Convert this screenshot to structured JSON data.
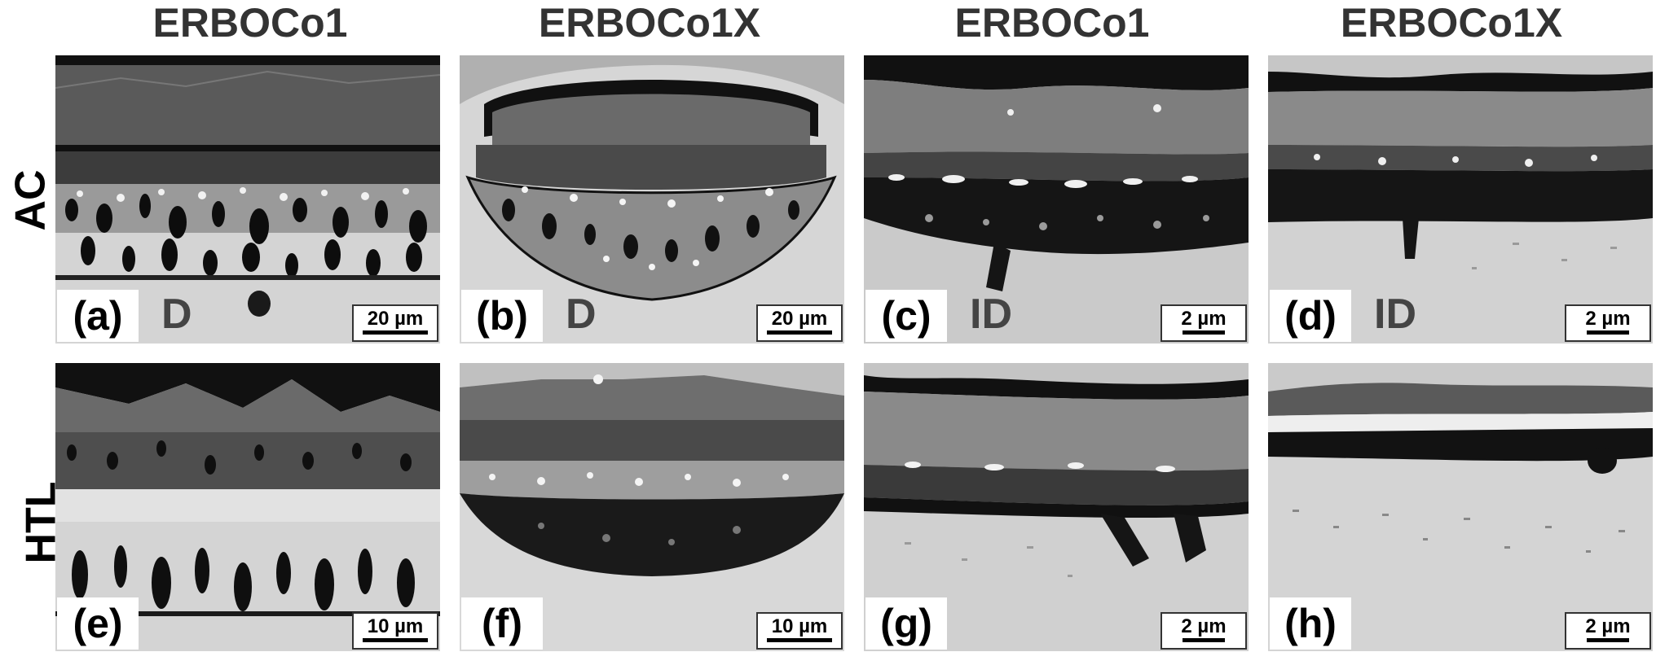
{
  "columns": [
    {
      "title": "ERBOCo1"
    },
    {
      "title": "ERBOCo1X"
    },
    {
      "title": "ERBOCo1"
    },
    {
      "title": "ERBOCo1X"
    }
  ],
  "rows": [
    {
      "label": "AC"
    },
    {
      "label": "HTL"
    }
  ],
  "panels": [
    {
      "letter": "(a)",
      "type": "D",
      "scale": "20 µm"
    },
    {
      "letter": "(b)",
      "type": "D",
      "scale": "20 µm"
    },
    {
      "letter": "(c)",
      "type": "ID",
      "scale": "2 µm"
    },
    {
      "letter": "(d)",
      "type": "ID",
      "scale": "2 µm"
    },
    {
      "letter": "(e)",
      "type": "",
      "scale": "10 µm"
    },
    {
      "letter": "(f)",
      "type": "",
      "scale": "10 µm"
    },
    {
      "letter": "(g)",
      "type": "",
      "scale": "2 µm"
    },
    {
      "letter": "(h)",
      "type": "",
      "scale": "2 µm"
    }
  ]
}
